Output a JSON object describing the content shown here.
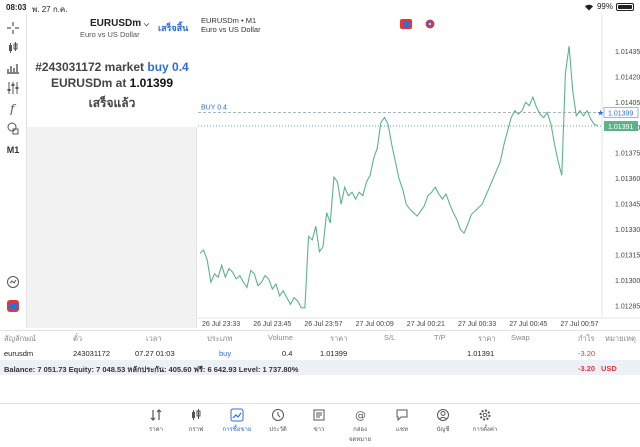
{
  "status": {
    "time": "08:03",
    "date": "พ. 27 ก.ค.",
    "battery": "99%"
  },
  "tools": {
    "timeframe": "M1"
  },
  "panel": {
    "symbol": "EURUSDm",
    "symbol_desc": "Euro vs US Dollar",
    "done_label": "เสร็จสิ้น",
    "order_number": "#243031172",
    "order_type": "market",
    "order_action": "buy 0.4",
    "fill_symbol": "EURUSDm",
    "fill_at": "at",
    "fill_price": "1.01399",
    "result": "เสร็จแล้ว"
  },
  "chart": {
    "title": "EURUSDm • M1",
    "subtitle": "Euro vs US Dollar",
    "line_label": "BUY 0.4",
    "buy_price": "1.01399",
    "current_price": "1.01391"
  },
  "chart_data": {
    "type": "line",
    "x_ticks": [
      "26 Jul 23:33",
      "26 Jul 23:45",
      "26 Jul 23:57",
      "27 Jul 00:09",
      "27 Jul 00:21",
      "27 Jul 00:33",
      "27 Jul 00:45",
      "27 Jul 00:57"
    ],
    "y_ticks": [
      "1.01435",
      "1.01420",
      "1.01405",
      "1.01390",
      "1.01375",
      "1.01360",
      "1.01345",
      "1.01330",
      "1.01315",
      "1.01300",
      "1.01285"
    ],
    "ylim": [
      1.01278,
      1.01444
    ],
    "values": [
      1.01316,
      1.01318,
      1.01312,
      1.01299,
      1.01304,
      1.01302,
      1.01309,
      1.01302,
      1.01307,
      1.01305,
      1.01301,
      1.01303,
      1.01299,
      1.01296,
      1.01306,
      1.01304,
      1.01297,
      1.01299,
      1.01303,
      1.01301,
      1.01295,
      1.01298,
      1.01291,
      1.01294,
      1.0129,
      1.01286,
      1.0129,
      1.01288,
      1.01284,
      1.01284,
      1.01326,
      1.01324,
      1.01332,
      1.01317,
      1.0132,
      1.0134,
      1.01334,
      1.01361,
      1.01358,
      1.01345,
      1.01355,
      1.0135,
      1.01352,
      1.01348,
      1.01352,
      1.0135,
      1.01358,
      1.01362,
      1.01372,
      1.01378,
      1.01393,
      1.01396,
      1.01392,
      1.0138,
      1.0137,
      1.0136,
      1.01354,
      1.01345,
      1.01342,
      1.0134,
      1.01338,
      1.01341,
      1.01344,
      1.0135,
      1.01352,
      1.01355,
      1.01351,
      1.01348,
      1.01351,
      1.01345,
      1.0134,
      1.01336,
      1.0133,
      1.01328,
      1.01333,
      1.01339,
      1.01341,
      1.01343,
      1.01345,
      1.0135,
      1.01355,
      1.0136,
      1.01365,
      1.0137,
      1.0138,
      1.01388,
      1.01396,
      1.014,
      1.01398,
      1.014,
      1.01405,
      1.01403,
      1.01408,
      1.01402,
      1.01398,
      1.01396,
      1.01399,
      1.01392,
      1.0138,
      1.0137,
      1.01362,
      1.01422,
      1.01438,
      1.01412,
      1.01397,
      1.014,
      1.01397,
      1.014,
      1.01395,
      1.01392,
      1.01391
    ]
  },
  "table": {
    "headers": [
      "สัญลักษณ์",
      "ตั๋ว",
      "เวลา",
      "ประเภท",
      "Volume",
      "ราคา",
      "S/L",
      "T/P",
      "ราคา",
      "Swap",
      "กำไร",
      "หมายเหตุ"
    ],
    "row": {
      "symbol": "eurusdm",
      "ticket": "243031172",
      "time": "07.27 01:03",
      "type": "buy",
      "volume": "0.4",
      "price": "1.01399",
      "current_price": "1.01391",
      "profit": "-3.20"
    },
    "balance_text": "Balance: 7 051.73 Equity: 7 048.53 หลักประกัน: 405.60 ฟรี: 6 642.93 Level: 1 737.80%",
    "total_profit": "-3.20",
    "currency": "USD"
  },
  "nav": {
    "items": [
      {
        "label": "ราคา",
        "icon": "arrows-icon"
      },
      {
        "label": "กราฟ",
        "icon": "candles-icon"
      },
      {
        "label": "การซื้อขาย",
        "icon": "trade-icon"
      },
      {
        "label": "ประวัติ",
        "icon": "history-icon"
      },
      {
        "label": "ข่าว",
        "icon": "news-icon"
      },
      {
        "label": "กล่องจดหมาย",
        "icon": "mail-icon"
      },
      {
        "label": "แชท",
        "icon": "chat-icon"
      },
      {
        "label": "บัญชี",
        "icon": "account-icon"
      },
      {
        "label": "การตั้งค่า",
        "icon": "gear-icon"
      }
    ],
    "accent": "#2d6fd6"
  }
}
